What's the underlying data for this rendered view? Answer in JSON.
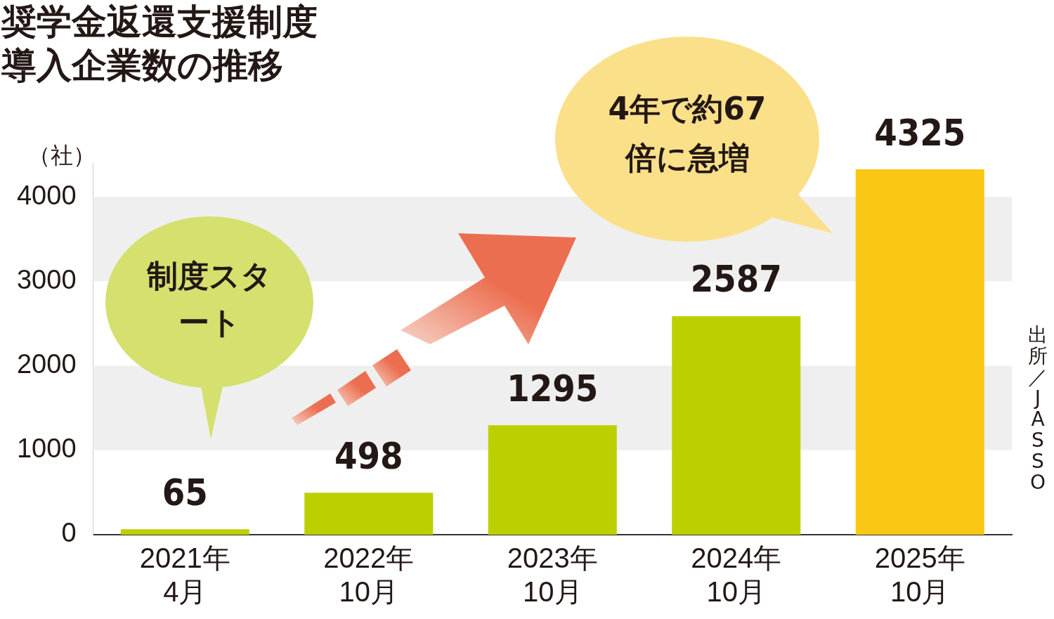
{
  "chart_data": {
    "type": "bar",
    "title": "奨学金返還支援制度導入企業数の推移",
    "ylabel": "（社）",
    "categories": [
      "2021年\n4月",
      "2022年\n10月",
      "2023年\n10月",
      "2024年\n10月",
      "2025年\n10月"
    ],
    "values": [
      65,
      498,
      1295,
      2587,
      4325
    ],
    "colors": [
      "#bcd000",
      "#bcd000",
      "#bcd000",
      "#bcd000",
      "#fbc715"
    ],
    "ylim": [
      0,
      4400
    ],
    "yticks": [
      0,
      1000,
      2000,
      3000,
      4000
    ],
    "bands": [
      {
        "axis": "y",
        "from": 1000,
        "to": 2000,
        "color": "#efefef"
      },
      {
        "axis": "y",
        "from": 3000,
        "to": 4000,
        "color": "#efefef"
      }
    ],
    "data_labels": true,
    "grid": false,
    "legend": false,
    "annotations": [
      "制度スタート",
      "4年で約67倍に急増",
      "出所／JASSO"
    ]
  }
}
